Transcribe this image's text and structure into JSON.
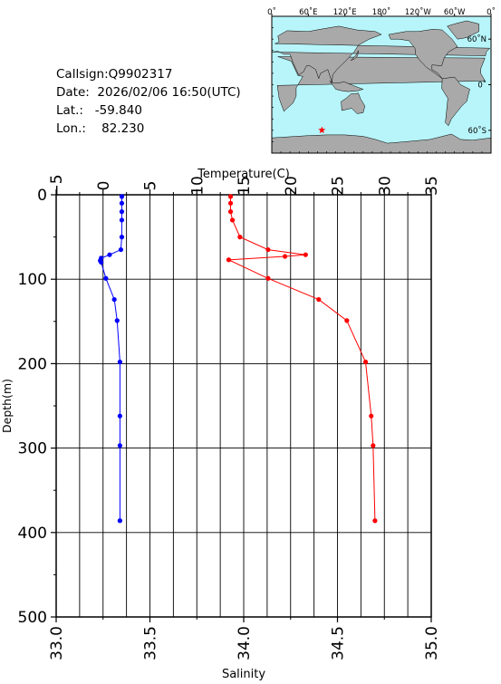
{
  "info": {
    "callsign": "Callsign:Q9902317",
    "date": "Date:  2026/02/06 16:50(UTC)",
    "lat": "Lat.:   -59.840",
    "lon": "Lon.:    82.230"
  },
  "map": {
    "top_labels": [
      "0˚",
      "60˚E",
      "120˚E",
      "180˚",
      "120˚W",
      "60˚W",
      "0˚"
    ],
    "right_labels": [
      "60˚N",
      "0˚",
      "60˚S"
    ],
    "marker": {
      "lat": -59.84,
      "lon": 82.23
    },
    "marker_color": "#ff0000",
    "land_color": "#a9a9a9",
    "ocean_color": "#b7f5fa"
  },
  "chart_data": {
    "type": "line",
    "ylabel": "Depth(m)",
    "ylim": [
      500,
      0
    ],
    "yticks": [
      "0",
      "100",
      "200",
      "300",
      "400",
      "500"
    ],
    "top_axis": {
      "label": "Temperature(C)",
      "range": [
        -5,
        35
      ],
      "ticks": [
        "−5",
        "0",
        "5",
        "10",
        "15",
        "20",
        "25",
        "30",
        "35"
      ]
    },
    "bottom_axis": {
      "label": "Salinity",
      "range": [
        33.0,
        35.0
      ],
      "ticks": [
        "33.0",
        "33.5",
        "34.0",
        "34.5",
        "35.0"
      ]
    },
    "grid": true,
    "series": [
      {
        "variable": "temperature",
        "color": "#0000ff",
        "points": [
          [
            2.0,
            2
          ],
          [
            2.0,
            10
          ],
          [
            2.0,
            20
          ],
          [
            2.0,
            30
          ],
          [
            2.0,
            50
          ],
          [
            1.9,
            65
          ],
          [
            0.7,
            71
          ],
          [
            -0.2,
            75
          ],
          [
            -0.3,
            78
          ],
          [
            -0.2,
            80
          ],
          [
            0.3,
            99
          ],
          [
            1.2,
            124
          ],
          [
            1.5,
            149
          ],
          [
            1.8,
            198
          ],
          [
            1.8,
            262
          ],
          [
            1.8,
            297
          ],
          [
            1.8,
            386
          ]
        ]
      },
      {
        "variable": "salinity",
        "color": "#ff0000",
        "points": [
          [
            33.93,
            2
          ],
          [
            33.93,
            10
          ],
          [
            33.93,
            20
          ],
          [
            33.94,
            30
          ],
          [
            33.98,
            50
          ],
          [
            34.13,
            65
          ],
          [
            34.33,
            71
          ],
          [
            34.22,
            73
          ],
          [
            33.92,
            77
          ],
          [
            34.13,
            99
          ],
          [
            34.4,
            124
          ],
          [
            34.55,
            149
          ],
          [
            34.65,
            198
          ],
          [
            34.68,
            262
          ],
          [
            34.69,
            297
          ],
          [
            34.7,
            386
          ]
        ]
      }
    ]
  }
}
